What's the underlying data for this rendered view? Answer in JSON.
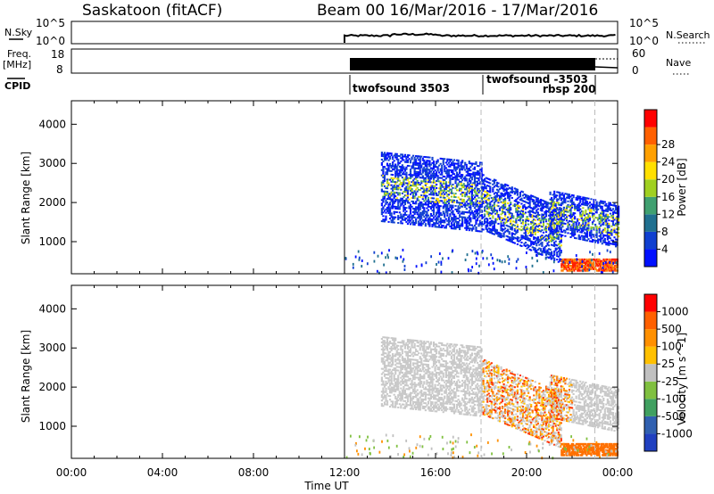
{
  "chart_data": {
    "type": "heatmap",
    "title": "Saskatoon (fitACF)",
    "subtitle": "Beam 00  16/Mar/2016 - 17/Mar/2016",
    "xlabel": "Time UT",
    "x_ticks": [
      "00:00",
      "04:00",
      "08:00",
      "12:00",
      "16:00",
      "20:00",
      "00:00"
    ],
    "x_range_hours": [
      0,
      24
    ],
    "top_panels": {
      "nsky_label": "N.Sky",
      "nsky_ticks": [
        "10^5",
        "10^0"
      ],
      "nsearch_label": "N.Search",
      "nsearch_ticks": [
        "10^5",
        "10^0"
      ],
      "freq_label": "Freq.",
      "freq_unit": "[MHz]",
      "freq_ticks": [
        "18",
        "8"
      ],
      "nave_label": "Nave",
      "nave_ticks": [
        "60",
        "0"
      ],
      "cpid_label": "CPID",
      "cpid_segments": [
        {
          "start_h": 12.0,
          "end_h": 18.0,
          "label": "twofsound 3503"
        },
        {
          "start_h": 18.0,
          "end_h": 23.0,
          "label": "twofsound -3503"
        },
        {
          "start_h": 18.0,
          "end_h": 23.0,
          "label": "rbsp 200"
        }
      ]
    },
    "power_panel": {
      "ylabel": "Slant Range [km]",
      "y_ticks": [
        1000,
        2000,
        3000,
        4000
      ],
      "ylim": [
        180,
        4600
      ],
      "colorbar_label": "Power [dB]",
      "colorbar_ticks": [
        "4",
        "8",
        "12",
        "16",
        "20",
        "24",
        "28"
      ],
      "colorbar_colors": [
        "#0010ff",
        "#1040d0",
        "#207090",
        "#40a070",
        "#a0d020",
        "#ffe000",
        "#ffa000",
        "#ff6000",
        "#ff0000"
      ]
    },
    "velocity_panel": {
      "ylabel": "Slant Range [km]",
      "y_ticks": [
        1000,
        2000,
        3000,
        4000
      ],
      "ylim": [
        180,
        4600
      ],
      "colorbar_label": "Velocity [m s^-1]",
      "colorbar_ticks": [
        "1000",
        "500",
        "100",
        "25",
        "-25",
        "-100",
        "-500",
        "-1000"
      ],
      "colorbar_colors": [
        "#2040c0",
        "#3060b0",
        "#40a060",
        "#80c040",
        "#c0c0c0",
        "#ffc000",
        "#ff9000",
        "#ff6000",
        "#ff0000"
      ]
    },
    "scatter_regions": [
      {
        "t0": 13.6,
        "t1": 18.0,
        "r0": 1500,
        "r1": 3300,
        "dr_per_h": -60
      },
      {
        "t0": 18.0,
        "t1": 21.5,
        "r0": 1300,
        "r1": 2700,
        "dr_per_h": -250
      },
      {
        "t0": 21.0,
        "t1": 24.0,
        "r0": 1200,
        "r1": 2300,
        "dr_per_h": -120
      }
    ]
  }
}
